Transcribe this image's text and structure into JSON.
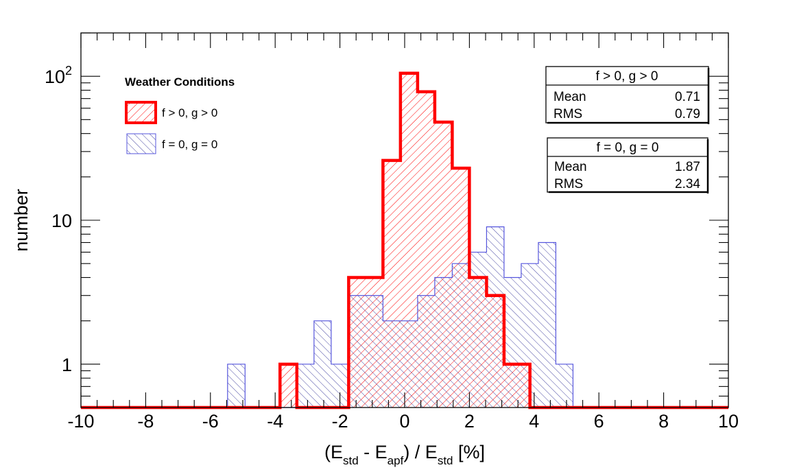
{
  "chart_data": {
    "type": "bar",
    "histogram": true,
    "log_y": true,
    "xlabel_parts": [
      "(E",
      "std",
      " - E",
      "apf",
      ") / E",
      "std",
      " [%]"
    ],
    "ylabel": "number",
    "xlim": [
      -10,
      10
    ],
    "ylim": [
      0.5,
      200
    ],
    "x_ticks": [
      "-10",
      "-8",
      "-6",
      "-4",
      "-2",
      "0",
      "2",
      "4",
      "6",
      "8",
      "10"
    ],
    "y_ticks": [
      {
        "value": 1,
        "base": "1",
        "exp": ""
      },
      {
        "value": 10,
        "base": "10",
        "exp": ""
      },
      {
        "value": 100,
        "base": "10",
        "exp": "2"
      }
    ],
    "bin_width": 0.533,
    "legend": {
      "title": "Weather Conditions",
      "entries": [
        "f > 0, g > 0",
        "f = 0, g = 0"
      ]
    },
    "series": [
      {
        "name": "f > 0, g > 0",
        "color": "#ff0000",
        "bin_edges": [
          -3.85,
          -3.33,
          -1.73,
          -0.67,
          -0.13,
          0.4,
          0.93,
          1.47,
          2.0,
          2.53,
          3.07,
          3.87
        ],
        "values": [
          1,
          0,
          4,
          26,
          105,
          78,
          48,
          23,
          4,
          3,
          1
        ]
      },
      {
        "name": "f = 0, g = 0",
        "color": "#5555dd",
        "bin_edges": [
          -5.47,
          -4.93,
          -3.33,
          -2.8,
          -2.27,
          -1.73,
          -0.67,
          0.4,
          0.93,
          1.47,
          2.0,
          2.53,
          3.07,
          3.6,
          4.13,
          4.67,
          5.2,
          5.73
        ],
        "values": [
          1,
          0,
          1,
          2,
          1,
          3,
          2,
          3,
          4,
          5,
          6,
          9,
          4,
          5,
          7,
          1,
          0
        ]
      }
    ],
    "stats": [
      {
        "title": "f > 0, g > 0",
        "rows": [
          {
            "label": "Mean",
            "value": "0.71"
          },
          {
            "label": "RMS",
            "value": "0.79"
          }
        ]
      },
      {
        "title": "f = 0, g = 0",
        "rows": [
          {
            "label": "Mean",
            "value": "1.87"
          },
          {
            "label": "RMS",
            "value": "2.34"
          }
        ]
      }
    ]
  }
}
